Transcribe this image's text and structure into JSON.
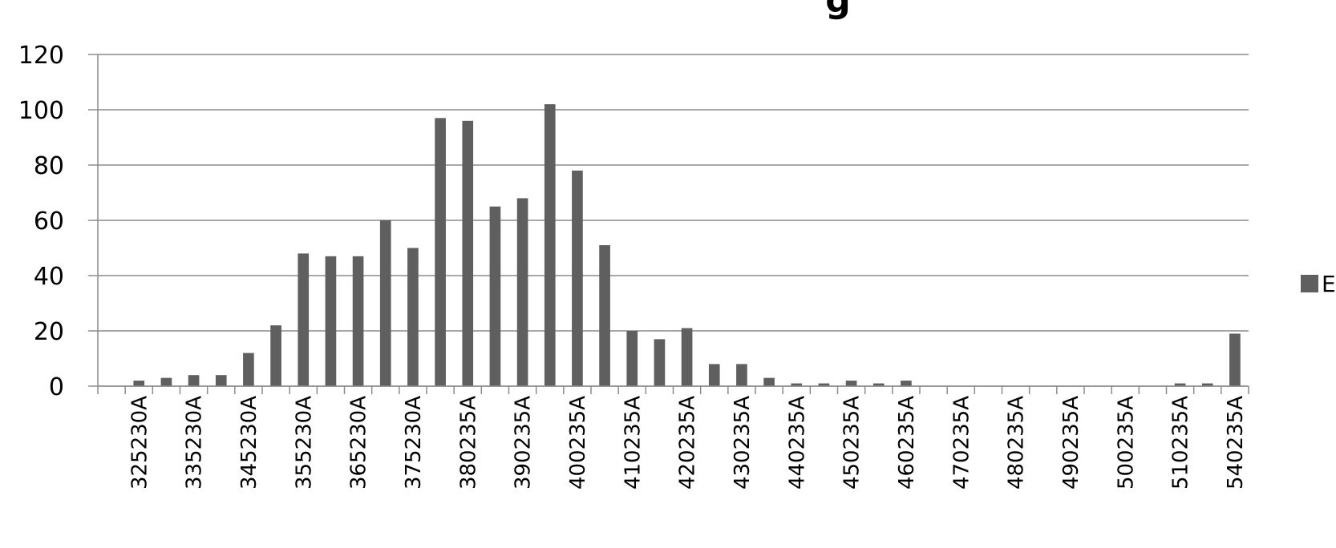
{
  "chart_data": {
    "type": "bar",
    "title": "g",
    "xlabel": "",
    "ylabel": "",
    "ylim": [
      0,
      120
    ],
    "yticks": [
      0,
      20,
      40,
      60,
      80,
      100,
      120
    ],
    "grid": true,
    "legend": {
      "position": "right",
      "label": "E"
    },
    "color": "#5f5f5f",
    "categories": [
      "",
      "325230A",
      "",
      "335230A",
      "",
      "345230A",
      "",
      "355230A",
      "",
      "365230A",
      "",
      "375230A",
      "",
      "380235A",
      "",
      "390235A",
      "",
      "400235A",
      "",
      "410235A",
      "",
      "420235A",
      "",
      "430235A",
      "",
      "440235A",
      "",
      "450235A",
      "",
      "460235A",
      "",
      "470235A",
      "",
      "480235A",
      "",
      "490235A",
      "",
      "500235A",
      "",
      "510235A",
      "",
      "540235A"
    ],
    "values": [
      0,
      2,
      3,
      4,
      4,
      12,
      22,
      48,
      47,
      47,
      60,
      50,
      97,
      96,
      65,
      68,
      102,
      78,
      51,
      20,
      17,
      21,
      8,
      8,
      3,
      1,
      1,
      2,
      1,
      2,
      0,
      0,
      0,
      0,
      0,
      0,
      0,
      0,
      0,
      1,
      1,
      19
    ]
  }
}
